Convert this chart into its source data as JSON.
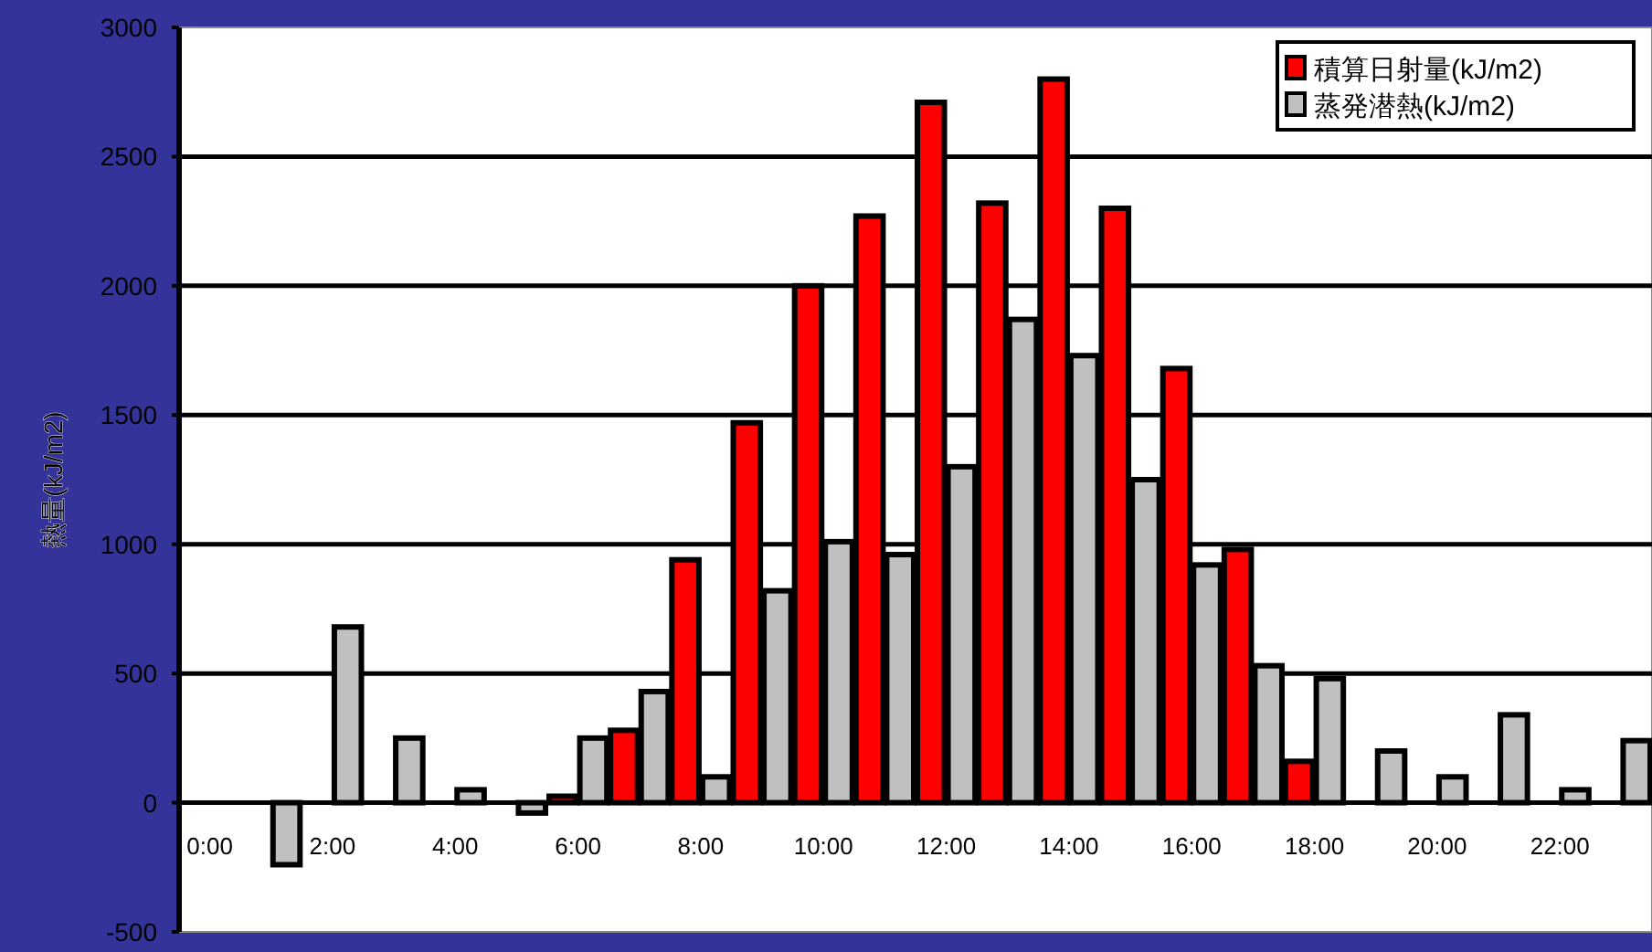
{
  "chart_data": {
    "type": "bar",
    "ylabel": "熱量(kJ/m2)",
    "categories": [
      "0:00",
      null,
      "2:00",
      null,
      "4:00",
      null,
      "6:00",
      null,
      "8:00",
      null,
      "10:00",
      null,
      "12:00",
      null,
      "14:00",
      null,
      "16:00",
      null,
      "18:00",
      null,
      "20:00",
      null,
      "22:00",
      null
    ],
    "series": [
      {
        "name": "積算日射量(kJ/m2)",
        "color": "#ff0000",
        "values": [
          0,
          0,
          0,
          0,
          0,
          0,
          25,
          280,
          940,
          1470,
          2000,
          2270,
          2710,
          2320,
          2800,
          2300,
          1680,
          980,
          160,
          0,
          0,
          0,
          0,
          0
        ]
      },
      {
        "name": "蒸発潜熱(kJ/m2)",
        "color": "#c0c0c0",
        "values": [
          0,
          -240,
          680,
          250,
          50,
          -40,
          250,
          430,
          100,
          820,
          1010,
          960,
          1300,
          1870,
          1730,
          1250,
          920,
          530,
          480,
          200,
          100,
          340,
          50,
          240
        ]
      }
    ],
    "ylim": [
      -500,
      3000
    ],
    "yticks": [
      -500,
      0,
      500,
      1000,
      1500,
      2000,
      2500,
      3000
    ],
    "grid": "y",
    "legend": "top right"
  }
}
